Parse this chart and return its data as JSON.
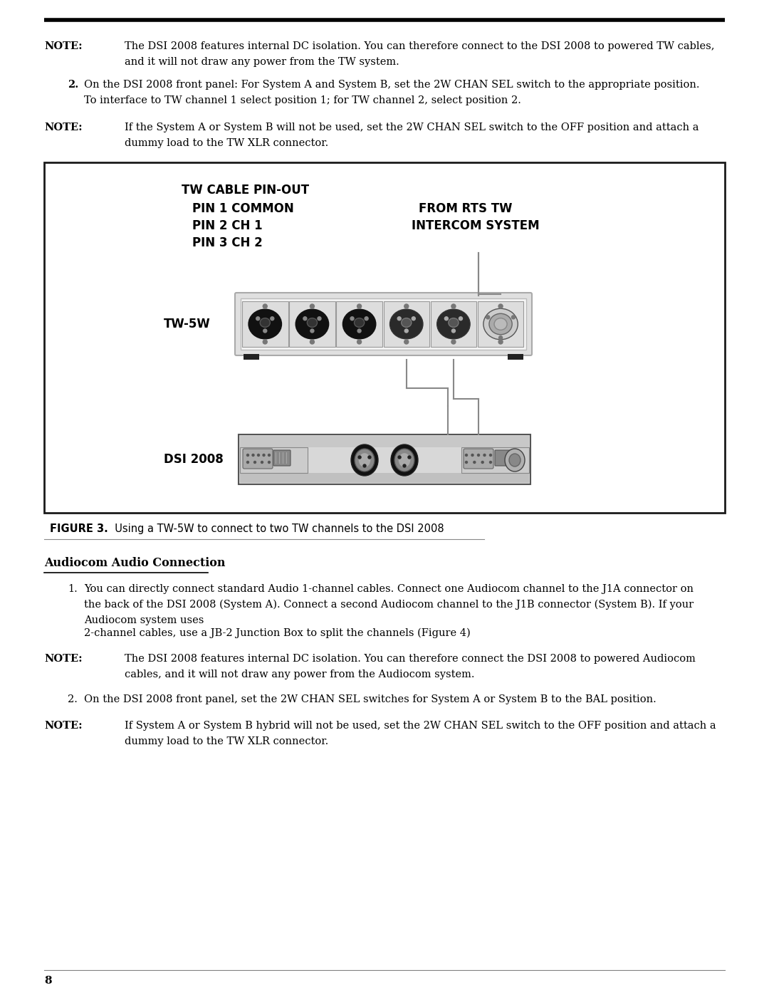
{
  "bg_color": "#ffffff",
  "page_number": "8",
  "note1_label": "NOTE:",
  "note1_text1": "The DSI 2008 features internal DC isolation. You can therefore connect to the DSI 2008 to powered TW cables,",
  "note1_text2": "and it will not draw any power from the TW system.",
  "item2_number": "2.",
  "item2_text1": "On the DSI 2008 front panel: For System A and System B, set the 2W CHAN SEL switch to the appropriate position.",
  "item2_text2": "To interface to TW channel 1 select position 1; for TW channel 2, select position 2.",
  "note2_label": "NOTE:",
  "note2_text1": "If the System A or System B will not be used, set the 2W CHAN SEL switch to the OFF position and attach a",
  "note2_text2": "dummy load to the TW XLR connector.",
  "fig_title_line1": "TW CABLE PIN-OUT",
  "fig_title_line2": "PIN 1 COMMON",
  "fig_title_line3": "PIN 2 CH 1",
  "fig_title_line4": "PIN 3 CH 2",
  "fig_rts_line1": "FROM RTS TW",
  "fig_rts_line2": "INTERCOM SYSTEM",
  "fig_tw5w_label": "TW-5W",
  "fig_dsi_label": "DSI 2008",
  "figure_caption_bold": "FIGURE 3.",
  "figure_caption_text": "  Using a TW-5W to connect to two TW channels to the DSI 2008",
  "section_header": "Audiocom Audio Connection",
  "item1_number": "1.",
  "item1_text1": "You can directly connect standard Audio 1-channel cables. Connect one Audiocom channel to the J1A connector on",
  "item1_text2": "the back of the DSI 2008 (System A). Connect a second Audiocom channel to the J1B connector (System B). If your",
  "item1_text3": "Audiocom system uses",
  "item1_text4": "2-channel cables, use a JB-2 Junction Box to split the channels (Figure 4)",
  "note3_label": "NOTE:",
  "note3_text1": "The DSI 2008 features internal DC isolation. You can therefore connect the DSI 2008 to powered Audiocom",
  "note3_text2": "cables, and it will not draw any power from the Audiocom system.",
  "item2b_number": "2.",
  "item2b_text": "On the DSI 2008 front panel, set the 2W CHAN SEL switches for System A or System B to the BAL position.",
  "note4_label": "NOTE:",
  "note4_text1": "If System A or System B hybrid will not be used, set the 2W CHAN SEL switch to the OFF position and attach a",
  "note4_text2": "dummy load to the TW XLR connector."
}
